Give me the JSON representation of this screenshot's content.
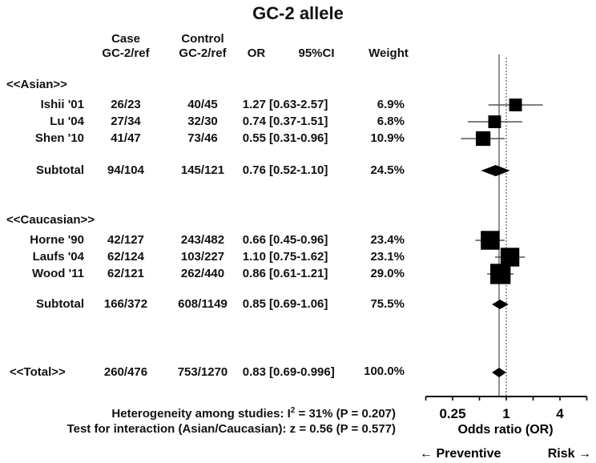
{
  "chart_data": {
    "type": "forest",
    "title": "GC-2 allele",
    "columns": [
      "Case GC-2/ref",
      "Control GC-2/ref",
      "OR",
      "95%CI",
      "Weight"
    ],
    "headers": {
      "case_line1": "Case",
      "case_line2": "GC-2/ref",
      "control_line1": "Control",
      "control_line2": "GC-2/ref",
      "or": "OR",
      "ci": "95%CI",
      "weight": "Weight"
    },
    "groups": [
      {
        "label": "<<Asian>>",
        "studies": [
          {
            "name": "Ishii '01",
            "case": "26/23",
            "control": "40/45",
            "or_text": "1.27",
            "ci_text": "[0.63-2.57]",
            "weight_text": "6.9%",
            "or": 1.27,
            "lo": 0.63,
            "hi": 2.57,
            "weight": 6.9
          },
          {
            "name": "Lu '04",
            "case": "27/34",
            "control": "32/30",
            "or_text": "0.74",
            "ci_text": "[0.37-1.51]",
            "weight_text": "6.8%",
            "or": 0.74,
            "lo": 0.37,
            "hi": 1.51,
            "weight": 6.8
          },
          {
            "name": "Shen '10",
            "case": "41/47",
            "control": "73/46",
            "or_text": "0.55",
            "ci_text": "[0.31-0.96]",
            "weight_text": "10.9%",
            "or": 0.55,
            "lo": 0.31,
            "hi": 0.96,
            "weight": 10.9
          }
        ],
        "subtotal": {
          "name": "Subtotal",
          "case": "94/104",
          "control": "145/121",
          "or_text": "0.76",
          "ci_text": "[0.52-1.10]",
          "weight_text": "24.5%",
          "or": 0.76,
          "lo": 0.52,
          "hi": 1.1
        }
      },
      {
        "label": "<<Caucasian>>",
        "studies": [
          {
            "name": "Horne '90",
            "case": "42/127",
            "control": "243/482",
            "or_text": "0.66",
            "ci_text": "[0.45-0.96]",
            "weight_text": "23.4%",
            "or": 0.66,
            "lo": 0.45,
            "hi": 0.96,
            "weight": 23.4
          },
          {
            "name": "Laufs '04",
            "case": "62/124",
            "control": "103/227",
            "or_text": "1.10",
            "ci_text": "[0.75-1.62]",
            "weight_text": "23.1%",
            "or": 1.1,
            "lo": 0.75,
            "hi": 1.62,
            "weight": 23.1
          },
          {
            "name": "Wood '11",
            "case": "62/121",
            "control": "262/440",
            "or_text": "0.86",
            "ci_text": "[0.61-1.21]",
            "weight_text": "29.0%",
            "or": 0.86,
            "lo": 0.61,
            "hi": 1.21,
            "weight": 29.0
          }
        ],
        "subtotal": {
          "name": "Subtotal",
          "case": "166/372",
          "control": "608/1149",
          "or_text": "0.85",
          "ci_text": "[0.69-1.06]",
          "weight_text": "75.5%",
          "or": 0.85,
          "lo": 0.69,
          "hi": 1.06
        }
      }
    ],
    "total": {
      "name": "<<Total>>",
      "case": "260/476",
      "control": "753/1270",
      "or_text": "0.83",
      "ci_text": "[0.69-0.996]",
      "weight_text": "100.0%",
      "or": 0.83,
      "lo": 0.69,
      "hi": 0.996
    },
    "heterogeneity": {
      "prefix": "Heterogeneity among studies: I",
      "sup": "2",
      "suffix": " = 31% (P = 0.207)"
    },
    "interaction": "Test for interaction (Asian/Caucasian): z = 0.56 (P = 0.577)",
    "xaxis": {
      "label": "Odds ratio (OR)",
      "scale": "log2",
      "range": [
        0.125,
        8
      ],
      "ticks": [
        0.125,
        0.25,
        0.5,
        1,
        2,
        4,
        8
      ],
      "tick_labels": [
        {
          "value": 0.25,
          "text": "0.25"
        },
        {
          "value": 1,
          "text": "1"
        },
        {
          "value": 4,
          "text": "4"
        }
      ]
    },
    "reference_line": 1,
    "pooled_line": 0.83,
    "direction_left": "← Preventive",
    "direction_right": "Risk →",
    "colors": {
      "marker": "#000000",
      "ci_line": "#555555",
      "axis": "#000000",
      "reference": "#777777"
    }
  }
}
